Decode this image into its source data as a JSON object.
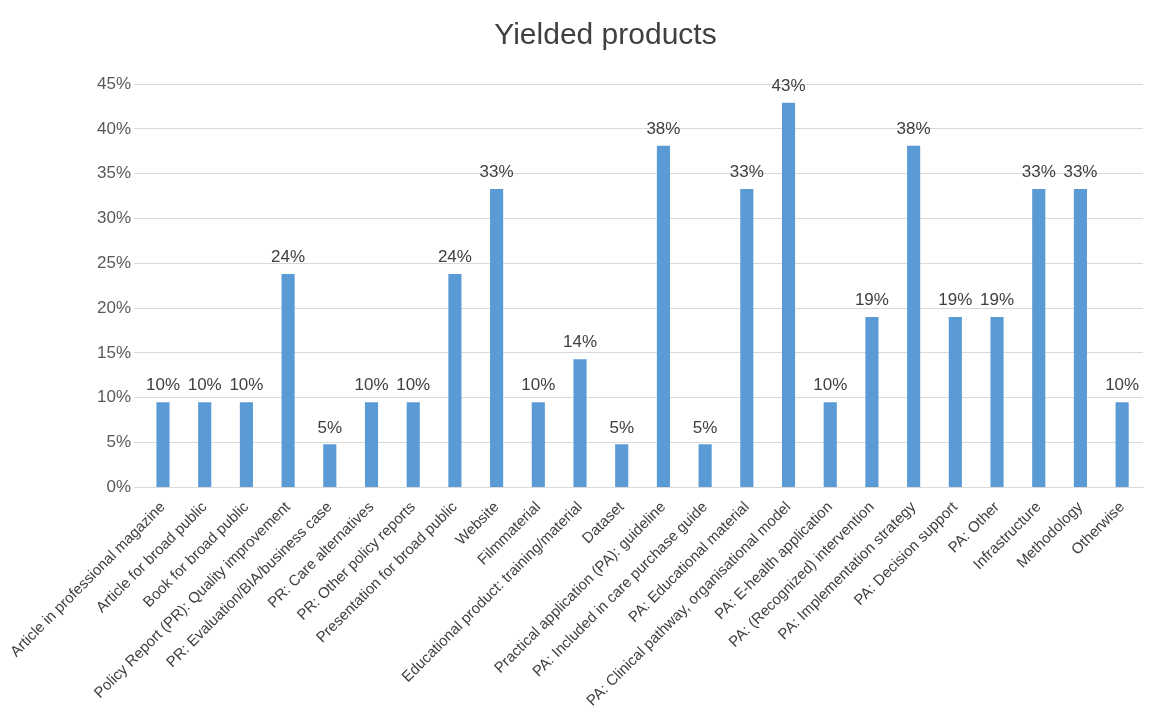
{
  "chart_data": {
    "type": "bar",
    "title": "Yielded products",
    "categories": [
      "Article in professional magazine",
      "Article for broad public",
      "Book for broad public",
      "Policy Report (PR): Quality improvement",
      "PR: Evaluation/BIA/business case",
      "PR: Care alternatives",
      "PR: Other policy reports",
      "Presentation for broad public",
      "Website",
      "Filmmaterial",
      "Educational product: training/material",
      "Dataset",
      "Practical application (PA): guideline",
      "PA: Included in care purchase guide",
      "PA: Educational material",
      "PA: Clinical pathway, organisational model",
      "PA: E-health application",
      "PA: (Recognized) intervention",
      "PA: Implementation strategy",
      "PA: Decision support",
      "PA: Other",
      "Infrastructure",
      "Methodology",
      "Otherwise"
    ],
    "values": [
      9.5,
      9.5,
      9.5,
      23.8,
      4.8,
      9.5,
      9.5,
      23.8,
      33.3,
      9.5,
      14.3,
      4.8,
      38.1,
      4.8,
      33.3,
      42.9,
      9.5,
      19.0,
      38.1,
      19.0,
      19.0,
      33.3,
      33.3,
      9.5
    ],
    "value_labels": [
      "10%",
      "10%",
      "10%",
      "24%",
      "5%",
      "10%",
      "10%",
      "24%",
      "33%",
      "10%",
      "14%",
      "5%",
      "38%",
      "5%",
      "33%",
      "43%",
      "10%",
      "19%",
      "38%",
      "19%",
      "19%",
      "33%",
      "33%",
      "10%"
    ],
    "color": "#5b9bd5",
    "ylim": [
      0,
      45
    ],
    "yticks": [
      {
        "value": 0,
        "label": "0%"
      },
      {
        "value": 5,
        "label": "5%"
      },
      {
        "value": 10,
        "label": "10%"
      },
      {
        "value": 15,
        "label": "15%"
      },
      {
        "value": 20,
        "label": "20%"
      },
      {
        "value": 25,
        "label": "25%"
      },
      {
        "value": 30,
        "label": "30%"
      },
      {
        "value": 35,
        "label": "35%"
      },
      {
        "value": 40,
        "label": "40%"
      },
      {
        "value": 45,
        "label": "45%"
      }
    ],
    "grid": "y"
  }
}
